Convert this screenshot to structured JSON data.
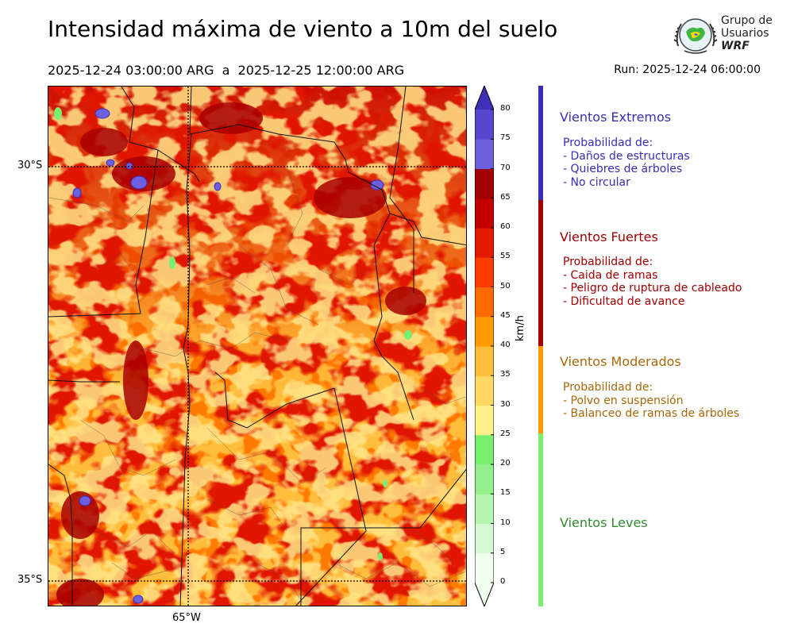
{
  "header": {
    "title": "Intensidad máxima de viento a 10m del suelo",
    "period": "2025-12-24 03:00:00 ARG  a  2025-12-25 12:00:00 ARG",
    "run": "Run: 2025-12-24 06:00:00"
  },
  "logo": {
    "line1": "Grupo de",
    "line2": "Usuarios",
    "line3": "WRF"
  },
  "map": {
    "lat_labels": [
      "30°S",
      "35°S"
    ],
    "lon_labels": [
      "65°W"
    ],
    "graticule_style": "dotted"
  },
  "colorbar": {
    "unit": "km/h",
    "ticks": [
      "0",
      "5",
      "10",
      "15",
      "20",
      "25",
      "30",
      "35",
      "40",
      "45",
      "50",
      "55",
      "60",
      "65",
      "70",
      "75",
      "80"
    ],
    "colors": [
      "#f0fff0",
      "#d2f9d2",
      "#b4f5b0",
      "#94ef8c",
      "#78ef70",
      "#fff08a",
      "#ffd861",
      "#ffbd3c",
      "#ff9a00",
      "#ff6a00",
      "#ff3c00",
      "#e31a00",
      "#c20000",
      "#a20000",
      "#6c60e0",
      "#5548cf",
      "#3f2fb9"
    ],
    "extend": "both"
  },
  "categories": [
    {
      "title": "Vientos Extremos",
      "color": "#3a2db4",
      "text_color": "#3a2db4",
      "lines": [
        "Probabilidad de:",
        "- Daños de estructuras",
        "- Quiebres de árboles",
        "- No circular"
      ]
    },
    {
      "title": "Vientos Fuertes",
      "color": "#a00000",
      "text_color": "#a00000",
      "lines": [
        "Probabilidad de:",
        "- Caida de ramas",
        "- Peligro de ruptura de cableado",
        "- Dificultad de avance"
      ]
    },
    {
      "title": "Vientos Moderados",
      "color": "#ff9a00",
      "text_color": "#a8680a",
      "lines": [
        "Probabilidad de:",
        "- Polvo en suspensión",
        "- Balanceo de ramas de árboles"
      ]
    },
    {
      "title": "Vientos Leves",
      "color": "#78ef70",
      "text_color": "#2e8b2e",
      "lines": []
    }
  ]
}
